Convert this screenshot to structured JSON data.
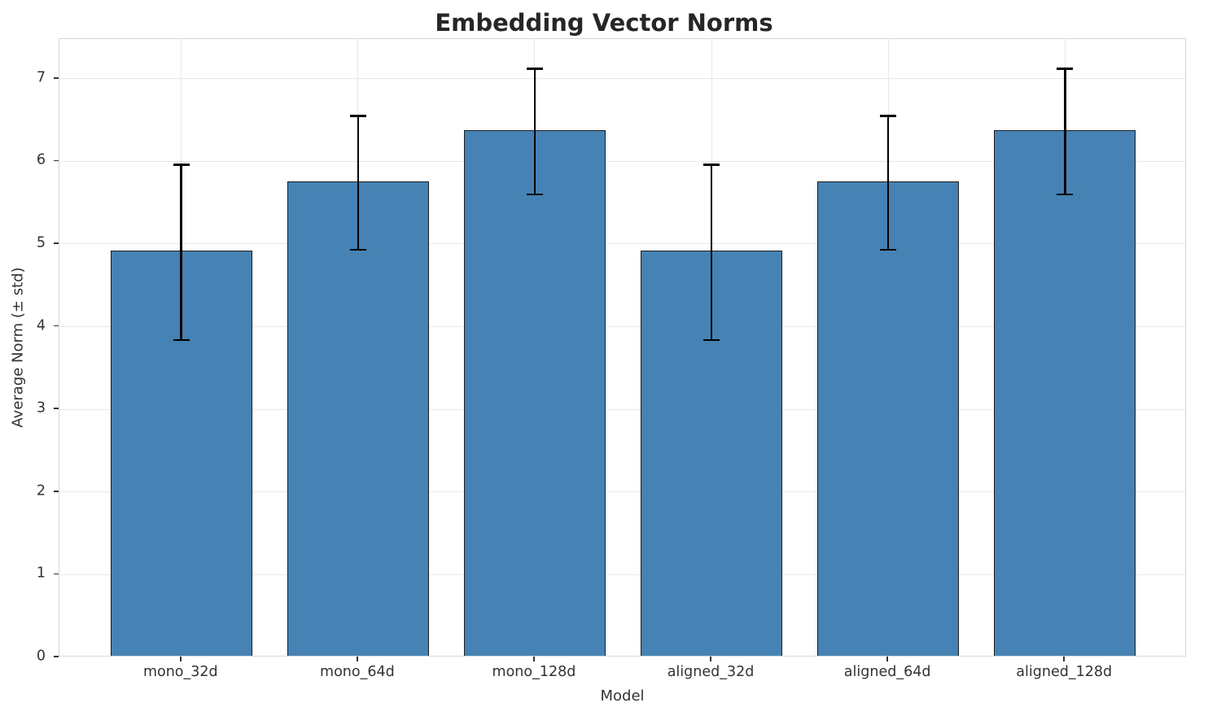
{
  "chart_data": {
    "type": "bar",
    "title": "Embedding Vector Norms",
    "xlabel": "Model",
    "ylabel": "Average Norm (± std)",
    "categories": [
      "mono_32d",
      "mono_64d",
      "mono_128d",
      "aligned_32d",
      "aligned_64d",
      "aligned_128d"
    ],
    "values": [
      4.9,
      5.74,
      6.36,
      4.9,
      5.74,
      6.36
    ],
    "errors": [
      1.06,
      0.81,
      0.76,
      1.06,
      0.81,
      0.76
    ],
    "ylim": [
      0,
      7.48
    ],
    "yticks": [
      0,
      1,
      2,
      3,
      4,
      5,
      6,
      7
    ],
    "bar_width_fraction": 0.8,
    "grid": true,
    "legend": "none",
    "bar_color": "#4682b4",
    "bar_edge_color": "#1c1c1c",
    "error_color": "#000000",
    "grid_color": "#e8e8e8",
    "spine_color": "#d6d6d6",
    "background_color": "#ffffff",
    "title_color": "#262626",
    "text_color": "#333333"
  }
}
